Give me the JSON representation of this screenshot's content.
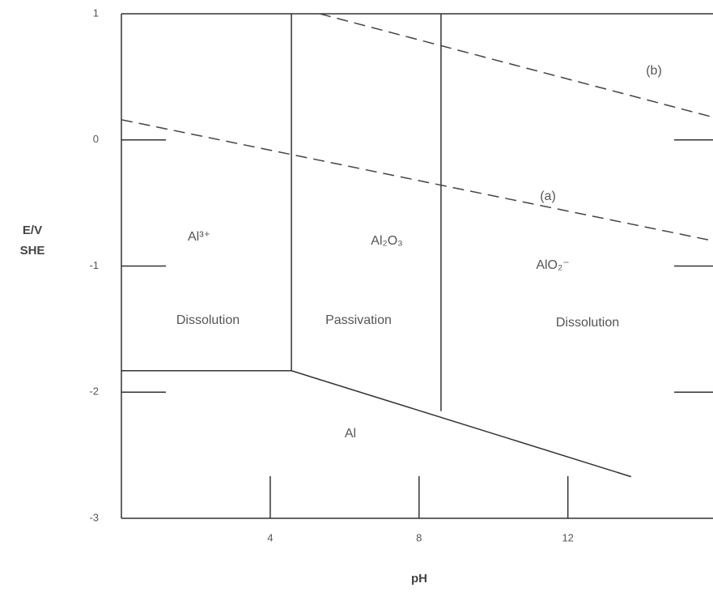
{
  "chart_data": {
    "type": "line",
    "x_label": "pH",
    "y_label": [
      "E/V",
      "SHE"
    ],
    "xlim": [
      0,
      15.9
    ],
    "xticks": [
      4,
      8,
      12
    ],
    "ylim": [
      -3,
      1
    ],
    "yticks": [
      1,
      0,
      -1,
      -2,
      -3
    ],
    "series": [
      {
        "color": "#333333",
        "dashed": false,
        "x": [
          0,
          4.57
        ],
        "values": [
          -1.83,
          -1.83
        ]
      },
      {
        "color": "#333333",
        "dashed": false,
        "x": [
          4.57,
          4.57
        ],
        "values": [
          -1.83,
          1
        ]
      },
      {
        "color": "#333333",
        "dashed": false,
        "x": [
          8.59,
          8.59
        ],
        "values": [
          -2.15,
          1
        ]
      },
      {
        "color": "#333333",
        "dashed": false,
        "x": [
          4.57,
          13.7
        ],
        "values": [
          -1.83,
          -2.67
        ]
      },
      {
        "name": "(a)",
        "color": "#444444",
        "dashed": true,
        "x": [
          0,
          15.9
        ],
        "values": [
          0.16,
          -0.8
        ]
      },
      {
        "name": "(b)",
        "color": "#444444",
        "dashed": true,
        "x": [
          5.33,
          15.9
        ],
        "values": [
          1,
          0.18
        ]
      }
    ],
    "annotations": [
      "Al³⁺",
      "Al₂O₃",
      "AlO₂⁻",
      "Dissolution",
      "Passivation",
      "Dissolution",
      "Al"
    ]
  }
}
